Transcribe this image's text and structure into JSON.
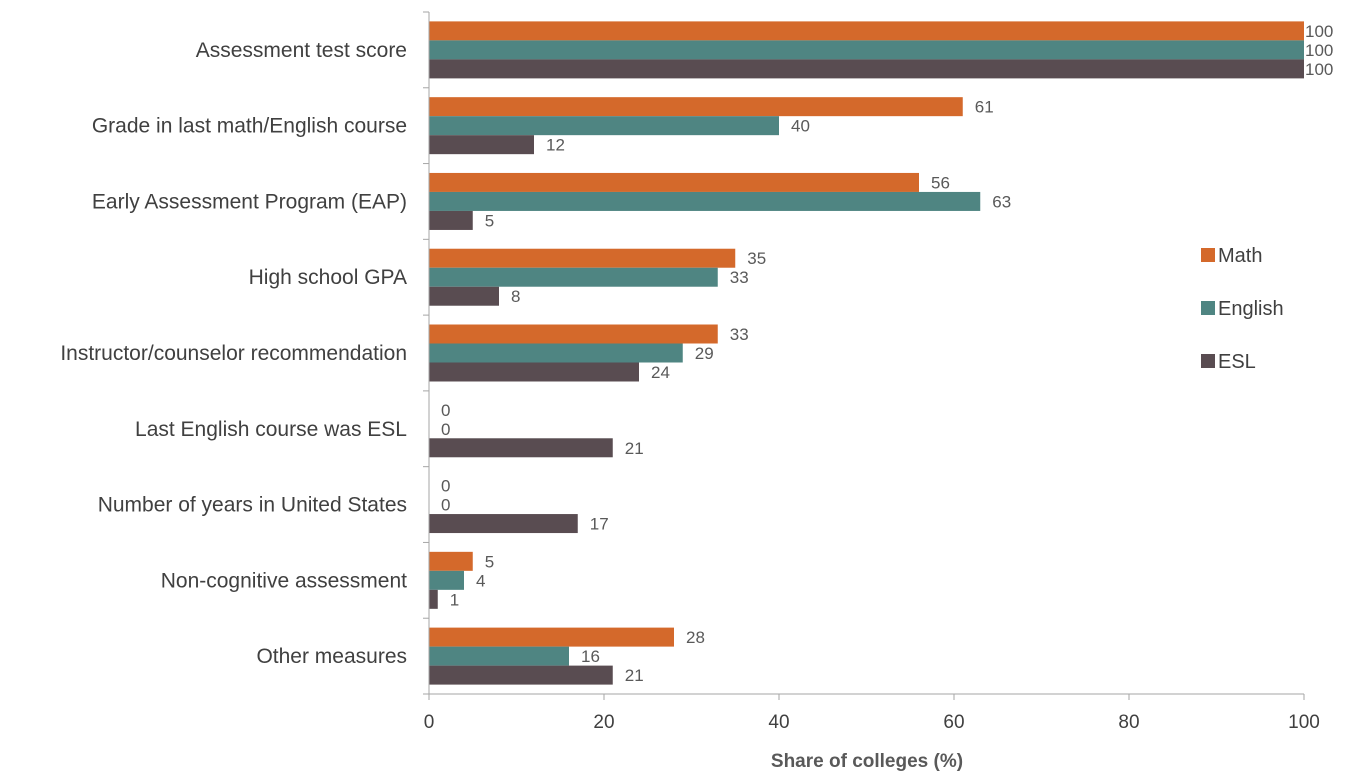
{
  "chart_data": {
    "type": "bar",
    "orientation": "horizontal",
    "categories": [
      "Assessment test score",
      "Grade in last math/English course",
      "Early Assessment Program (EAP)",
      "High school GPA",
      "Instructor/counselor recommendation",
      "Last English course was ESL",
      "Number of years in United States",
      "Non-cognitive assessment",
      "Other measures"
    ],
    "series": [
      {
        "name": "Math",
        "color": "#d4692b",
        "values": [
          100,
          61,
          56,
          35,
          33,
          0,
          0,
          5,
          28
        ]
      },
      {
        "name": "English",
        "color": "#4f8582",
        "values": [
          100,
          40,
          63,
          33,
          29,
          0,
          0,
          4,
          16
        ]
      },
      {
        "name": "ESL",
        "color": "#594c51",
        "values": [
          100,
          12,
          5,
          8,
          24,
          21,
          17,
          1,
          21
        ]
      }
    ],
    "xlabel": "Share of colleges (%)",
    "ylabel": "",
    "xlim": [
      0,
      100
    ],
    "xticks": [
      "0",
      "20",
      "40",
      "60",
      "80",
      "100"
    ],
    "grid": false,
    "legend_position": "right"
  }
}
